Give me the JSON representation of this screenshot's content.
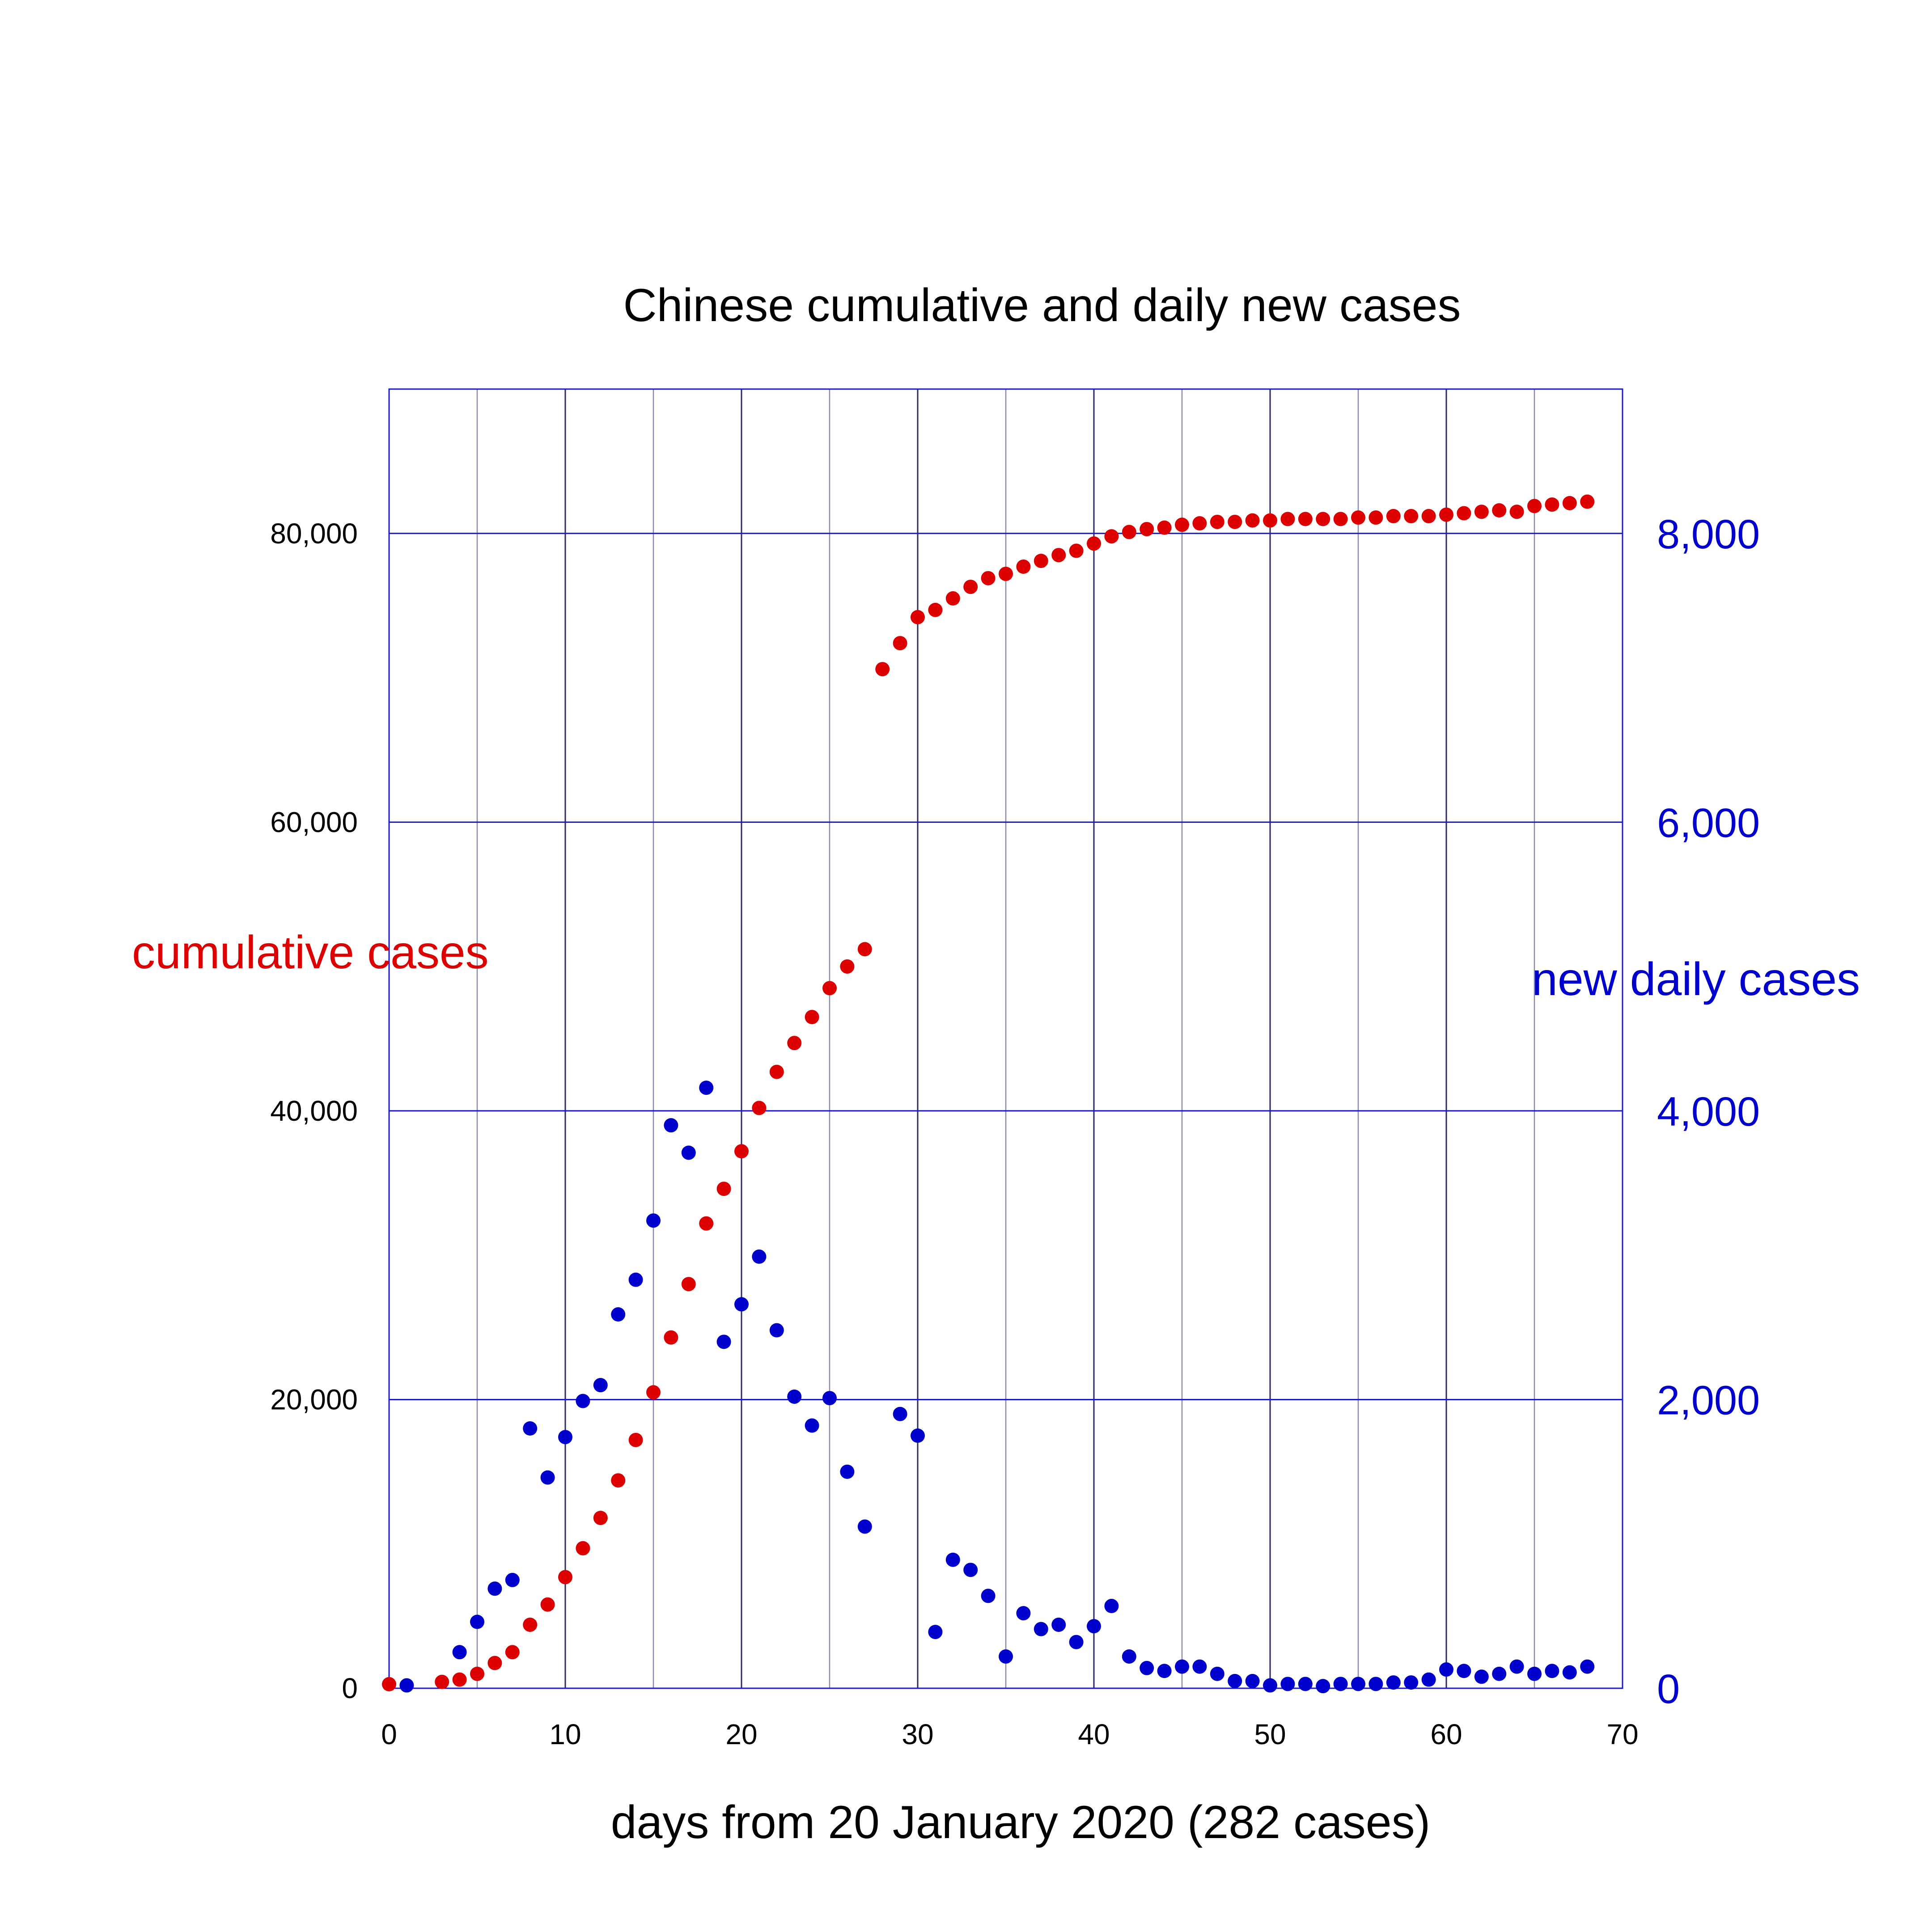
{
  "colors": {
    "cumulative": "#dd0000",
    "daily": "#0000cc",
    "grid_major": "#2a2a66",
    "grid_minor": "#8888aa",
    "grid_horizontal": "#1a1acc",
    "text": "#000000"
  },
  "chart_data": {
    "type": "scatter",
    "title": "Chinese cumulative and daily new cases",
    "xlabel": "days from 20 January 2020 (282 cases)",
    "ylabel_left": "cumulative  cases",
    "ylabel_right": "new daily cases",
    "xlim": [
      0,
      70
    ],
    "ylim_left": [
      0,
      90000
    ],
    "ylim_right": [
      0,
      9000
    ],
    "x_ticks": [
      "0",
      "10",
      "20",
      "30",
      "40",
      "50",
      "60",
      "70"
    ],
    "y_ticks_left": [
      "0",
      "20,000",
      "40,000",
      "60,000",
      "80,000"
    ],
    "y_ticks_right": [
      "0",
      "2,000",
      "4,000",
      "6,000",
      "8,000"
    ],
    "grid": true,
    "series": [
      {
        "name": "cumulative  cases",
        "axis": "left",
        "x": [
          0,
          3,
          4,
          5,
          6,
          7,
          8,
          9,
          10,
          11,
          12,
          13,
          14,
          15,
          16,
          17,
          18,
          19,
          20,
          21,
          22,
          23,
          24,
          25,
          26,
          27,
          28,
          29,
          30,
          31,
          32,
          33,
          34,
          35,
          36,
          37,
          38,
          39,
          40,
          41,
          42,
          43,
          44,
          45,
          46,
          47,
          48,
          49,
          50,
          51,
          52,
          53,
          54,
          55,
          56,
          57,
          58,
          59,
          60,
          61,
          62,
          63,
          64,
          65,
          66,
          67,
          68
        ],
        "y": [
          282,
          440,
          600,
          1000,
          1750,
          2500,
          4400,
          5800,
          7700,
          9700,
          11800,
          14400,
          17200,
          20500,
          24300,
          28000,
          32200,
          34600,
          37200,
          40200,
          42700,
          44700,
          46500,
          48500,
          50000,
          51200,
          70600,
          72400,
          74200,
          74700,
          75500,
          76300,
          76900,
          77200,
          77700,
          78100,
          78500,
          78800,
          79300,
          79800,
          80100,
          80300,
          80400,
          80600,
          80700,
          80800,
          80800,
          80900,
          80900,
          81000,
          81000,
          81000,
          81000,
          81100,
          81100,
          81200,
          81200,
          81200,
          81300,
          81400,
          81500,
          81600,
          81500,
          81900,
          82000,
          82100,
          82200
        ]
      },
      {
        "name": "new daily cases",
        "axis": "right",
        "x": [
          1,
          4,
          5,
          6,
          7,
          8,
          9,
          10,
          11,
          12,
          13,
          14,
          15,
          16,
          17,
          18,
          19,
          20,
          21,
          22,
          23,
          24,
          25,
          26,
          27,
          29,
          30,
          31,
          32,
          33,
          34,
          35,
          36,
          37,
          38,
          39,
          40,
          41,
          42,
          43,
          44,
          45,
          46,
          47,
          48,
          49,
          50,
          51,
          52,
          53,
          54,
          55,
          56,
          57,
          58,
          59,
          60,
          61,
          62,
          63,
          64,
          65,
          66,
          67,
          68
        ],
        "y": [
          20,
          250,
          460,
          690,
          750,
          1800,
          1460,
          1740,
          1990,
          2100,
          2590,
          2830,
          3240,
          3900,
          3710,
          4160,
          2400,
          2660,
          2990,
          2480,
          2020,
          1820,
          2010,
          1500,
          1120,
          1900,
          1750,
          390,
          890,
          820,
          640,
          220,
          520,
          410,
          440,
          320,
          430,
          570,
          220,
          140,
          120,
          150,
          150,
          100,
          50,
          50,
          20,
          30,
          30,
          15,
          30,
          30,
          30,
          40,
          40,
          60,
          130,
          120,
          80,
          100,
          150,
          100,
          120,
          110,
          150
        ]
      }
    ]
  }
}
